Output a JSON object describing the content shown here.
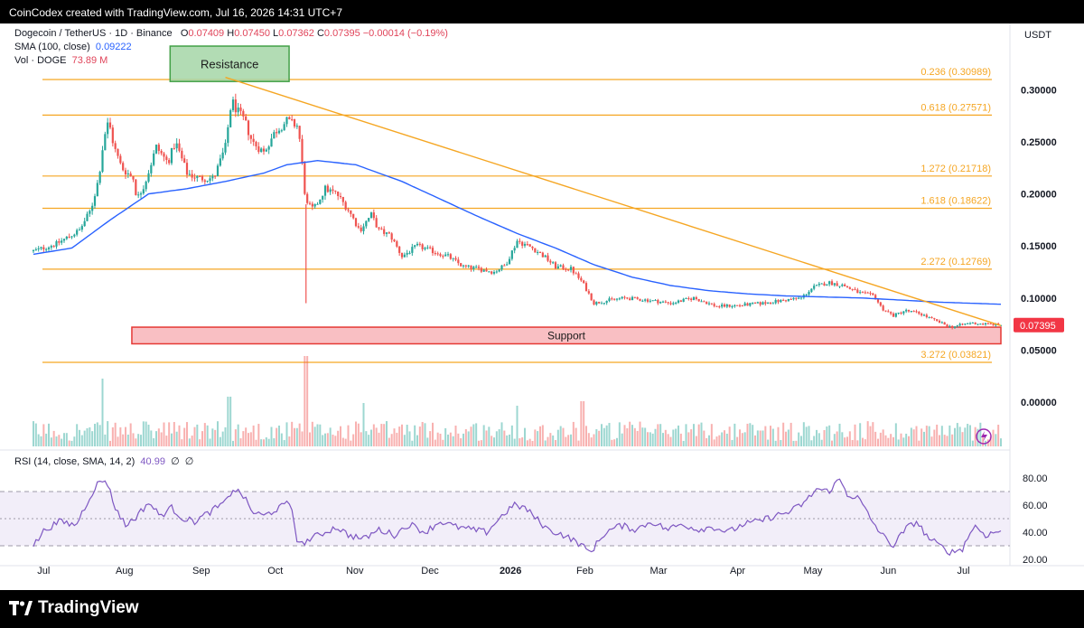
{
  "header": {
    "attribution": "CoinCodex created with TradingView.com, Jul 16, 2026 14:31 UTC+7"
  },
  "legend": {
    "symbol": "Dogecoin / TetherUS · 1D · Binance",
    "open_label": "O",
    "open": "0.07409",
    "high_label": "H",
    "high": "0.07450",
    "low_label": "L",
    "low": "0.07362",
    "close_label": "C",
    "close": "0.07395",
    "change": "−0.00014 (−0.19%)",
    "sma_label": "SMA (100, close)",
    "sma_value": "0.09222",
    "vol_label": "Vol · DOGE",
    "vol_value": "73.89 M",
    "rsi_label": "RSI (14, close, SMA, 14, 2)",
    "rsi_value": "40.99",
    "rsi_extra1": "∅",
    "rsi_extra2": "∅"
  },
  "currency": "USDT",
  "zones": {
    "resistance": "Resistance",
    "support": "Support"
  },
  "footer": {
    "brand": "TradingView"
  },
  "colors": {
    "bull": "#26a69a",
    "bear": "#ef5350",
    "sma": "#2962ff",
    "fib": "#f5a623",
    "rsi": "#7e57c2",
    "resistance_fill": "#a5d6a7",
    "support_fill": "#f8b4b8"
  },
  "chart_data": {
    "type": "candlestick",
    "price_axis": {
      "ticks": [
        {
          "value": 0.3,
          "label": "0.30000"
        },
        {
          "value": 0.25,
          "label": "0.25000"
        },
        {
          "value": 0.2,
          "label": "0.20000"
        },
        {
          "value": 0.15,
          "label": "0.15000"
        },
        {
          "value": 0.1,
          "label": "0.10000"
        },
        {
          "value": 0.05,
          "label": "0.05000"
        },
        {
          "value": 0.0,
          "label": "0.00000"
        }
      ],
      "last_price": {
        "value": 0.07395,
        "label": "0.07395"
      }
    },
    "rsi_axis": {
      "ticks": [
        {
          "value": 80,
          "label": "80.00"
        },
        {
          "value": 60,
          "label": "60.00"
        },
        {
          "value": 40,
          "label": "40.00"
        },
        {
          "value": 20,
          "label": "20.00"
        }
      ],
      "upper_band": 70,
      "middle_band": 50,
      "lower_band": 30
    },
    "time_axis": [
      {
        "label": "Jul",
        "t": 0.05,
        "bold": false
      },
      {
        "label": "Aug",
        "t": 1.07,
        "bold": false
      },
      {
        "label": "Sep",
        "t": 2.07,
        "bold": false
      },
      {
        "label": "Oct",
        "t": 3.05,
        "bold": false
      },
      {
        "label": "Nov",
        "t": 4.07,
        "bold": false
      },
      {
        "label": "Dec",
        "t": 5.05,
        "bold": false
      },
      {
        "label": "2026",
        "t": 6.07,
        "bold": true
      },
      {
        "label": "Feb",
        "t": 7.07,
        "bold": false
      },
      {
        "label": "Mar",
        "t": 8.03,
        "bold": false
      },
      {
        "label": "Apr",
        "t": 9.07,
        "bold": false
      },
      {
        "label": "May",
        "t": 10.03,
        "bold": false
      },
      {
        "label": "Jun",
        "t": 11.03,
        "bold": false
      },
      {
        "label": "Jul",
        "t": 12.03,
        "bold": false
      }
    ],
    "fib_levels": [
      {
        "label": "0.236 (0.30989)",
        "value": 0.30989
      },
      {
        "label": "0.618 (0.27571)",
        "value": 0.27571
      },
      {
        "label": "1.272 (0.21718)",
        "value": 0.21718
      },
      {
        "label": "1.618 (0.18622)",
        "value": 0.18622
      },
      {
        "label": "2.272 (0.12769)",
        "value": 0.12769
      },
      {
        "label": "3.272 (0.03821)",
        "value": 0.03821
      }
    ],
    "resistance_zone": {
      "t_start": 1.78,
      "t_end": 3.33,
      "low": 0.308,
      "high": 0.342
    },
    "support_zone": {
      "t_start": 1.07,
      "t_end": 12.6,
      "low": 0.056,
      "high": 0.072
    },
    "trendline": [
      {
        "t": 2.5,
        "v": 0.312
      },
      {
        "t": 12.6,
        "v": 0.0735
      }
    ],
    "price_path": [
      [
        0.0,
        0.145
      ],
      [
        0.3,
        0.152
      ],
      [
        0.6,
        0.165
      ],
      [
        0.75,
        0.185
      ],
      [
        0.85,
        0.215
      ],
      [
        0.92,
        0.255
      ],
      [
        0.98,
        0.27
      ],
      [
        1.05,
        0.245
      ],
      [
        1.15,
        0.225
      ],
      [
        1.3,
        0.215
      ],
      [
        1.35,
        0.195
      ],
      [
        1.45,
        0.21
      ],
      [
        1.6,
        0.245
      ],
      [
        1.75,
        0.23
      ],
      [
        1.85,
        0.25
      ],
      [
        2.0,
        0.22
      ],
      [
        2.15,
        0.215
      ],
      [
        2.35,
        0.215
      ],
      [
        2.5,
        0.245
      ],
      [
        2.58,
        0.29
      ],
      [
        2.65,
        0.28
      ],
      [
        2.75,
        0.27
      ],
      [
        2.85,
        0.25
      ],
      [
        3.0,
        0.24
      ],
      [
        3.15,
        0.26
      ],
      [
        3.3,
        0.27
      ],
      [
        3.45,
        0.265
      ],
      [
        3.55,
        0.19
      ],
      [
        3.65,
        0.185
      ],
      [
        3.8,
        0.205
      ],
      [
        3.95,
        0.2
      ],
      [
        4.1,
        0.185
      ],
      [
        4.25,
        0.165
      ],
      [
        4.4,
        0.18
      ],
      [
        4.5,
        0.165
      ],
      [
        4.65,
        0.16
      ],
      [
        4.8,
        0.14
      ],
      [
        5.0,
        0.15
      ],
      [
        5.2,
        0.145
      ],
      [
        5.4,
        0.14
      ],
      [
        5.6,
        0.13
      ],
      [
        5.8,
        0.128
      ],
      [
        6.0,
        0.125
      ],
      [
        6.15,
        0.132
      ],
      [
        6.3,
        0.155
      ],
      [
        6.5,
        0.148
      ],
      [
        6.65,
        0.14
      ],
      [
        6.8,
        0.13
      ],
      [
        7.0,
        0.128
      ],
      [
        7.15,
        0.115
      ],
      [
        7.3,
        0.095
      ],
      [
        7.5,
        0.098
      ],
      [
        7.7,
        0.1
      ],
      [
        8.0,
        0.098
      ],
      [
        8.3,
        0.095
      ],
      [
        8.6,
        0.1
      ],
      [
        8.9,
        0.092
      ],
      [
        9.2,
        0.093
      ],
      [
        9.5,
        0.095
      ],
      [
        9.8,
        0.098
      ],
      [
        10.0,
        0.1
      ],
      [
        10.15,
        0.11
      ],
      [
        10.35,
        0.115
      ],
      [
        10.55,
        0.112
      ],
      [
        10.75,
        0.105
      ],
      [
        10.95,
        0.102
      ],
      [
        11.05,
        0.09
      ],
      [
        11.2,
        0.083
      ],
      [
        11.35,
        0.088
      ],
      [
        11.55,
        0.085
      ],
      [
        11.75,
        0.078
      ],
      [
        11.95,
        0.072
      ],
      [
        12.2,
        0.076
      ],
      [
        12.4,
        0.075
      ],
      [
        12.6,
        0.07395
      ]
    ],
    "sma_path": [
      [
        0.0,
        0.142
      ],
      [
        0.5,
        0.148
      ],
      [
        1.0,
        0.175
      ],
      [
        1.5,
        0.2
      ],
      [
        2.0,
        0.205
      ],
      [
        2.5,
        0.212
      ],
      [
        3.0,
        0.22
      ],
      [
        3.3,
        0.228
      ],
      [
        3.7,
        0.232
      ],
      [
        4.2,
        0.228
      ],
      [
        4.8,
        0.212
      ],
      [
        5.3,
        0.195
      ],
      [
        5.8,
        0.178
      ],
      [
        6.3,
        0.162
      ],
      [
        6.8,
        0.148
      ],
      [
        7.3,
        0.132
      ],
      [
        7.8,
        0.12
      ],
      [
        8.3,
        0.112
      ],
      [
        8.8,
        0.107
      ],
      [
        9.3,
        0.104
      ],
      [
        9.8,
        0.102
      ],
      [
        10.3,
        0.101
      ],
      [
        10.8,
        0.1
      ],
      [
        11.3,
        0.098
      ],
      [
        11.8,
        0.096
      ],
      [
        12.6,
        0.094
      ]
    ],
    "rsi_path": [
      [
        0.0,
        30
      ],
      [
        0.15,
        42
      ],
      [
        0.35,
        48
      ],
      [
        0.55,
        45
      ],
      [
        0.7,
        62
      ],
      [
        0.82,
        75
      ],
      [
        0.95,
        79
      ],
      [
        1.05,
        60
      ],
      [
        1.2,
        45
      ],
      [
        1.35,
        52
      ],
      [
        1.5,
        62
      ],
      [
        1.65,
        52
      ],
      [
        1.8,
        58
      ],
      [
        1.95,
        50
      ],
      [
        2.1,
        48
      ],
      [
        2.3,
        55
      ],
      [
        2.5,
        62
      ],
      [
        2.6,
        72
      ],
      [
        2.72,
        68
      ],
      [
        2.85,
        55
      ],
      [
        3.0,
        52
      ],
      [
        3.2,
        58
      ],
      [
        3.35,
        62
      ],
      [
        3.45,
        30
      ],
      [
        3.6,
        35
      ],
      [
        3.8,
        40
      ],
      [
        3.95,
        44
      ],
      [
        4.1,
        38
      ],
      [
        4.3,
        35
      ],
      [
        4.5,
        42
      ],
      [
        4.7,
        38
      ],
      [
        4.9,
        46
      ],
      [
        5.1,
        40
      ],
      [
        5.3,
        48
      ],
      [
        5.5,
        44
      ],
      [
        5.7,
        42
      ],
      [
        5.9,
        40
      ],
      [
        6.1,
        52
      ],
      [
        6.25,
        60
      ],
      [
        6.4,
        58
      ],
      [
        6.55,
        50
      ],
      [
        6.7,
        42
      ],
      [
        6.9,
        38
      ],
      [
        7.1,
        32
      ],
      [
        7.25,
        25
      ],
      [
        7.45,
        40
      ],
      [
        7.65,
        45
      ],
      [
        7.85,
        42
      ],
      [
        8.05,
        48
      ],
      [
        8.25,
        42
      ],
      [
        8.45,
        46
      ],
      [
        8.65,
        42
      ],
      [
        8.85,
        44
      ],
      [
        9.05,
        40
      ],
      [
        9.25,
        46
      ],
      [
        9.45,
        48
      ],
      [
        9.65,
        52
      ],
      [
        9.85,
        55
      ],
      [
        10.05,
        62
      ],
      [
        10.2,
        72
      ],
      [
        10.35,
        70
      ],
      [
        10.5,
        79
      ],
      [
        10.6,
        68
      ],
      [
        10.75,
        65
      ],
      [
        10.9,
        50
      ],
      [
        11.05,
        38
      ],
      [
        11.2,
        30
      ],
      [
        11.35,
        42
      ],
      [
        11.5,
        48
      ],
      [
        11.65,
        36
      ],
      [
        11.8,
        30
      ],
      [
        11.95,
        25
      ],
      [
        12.1,
        28
      ],
      [
        12.25,
        45
      ],
      [
        12.4,
        38
      ],
      [
        12.6,
        41
      ]
    ],
    "volume_spikes": [
      {
        "t": 3.55,
        "level": 1.0
      },
      {
        "t": 0.9,
        "level": 0.75
      },
      {
        "t": 2.55,
        "level": 0.55
      },
      {
        "t": 7.15,
        "level": 0.5
      },
      {
        "t": 6.3,
        "level": 0.45
      },
      {
        "t": 4.3,
        "level": 0.48
      }
    ]
  }
}
